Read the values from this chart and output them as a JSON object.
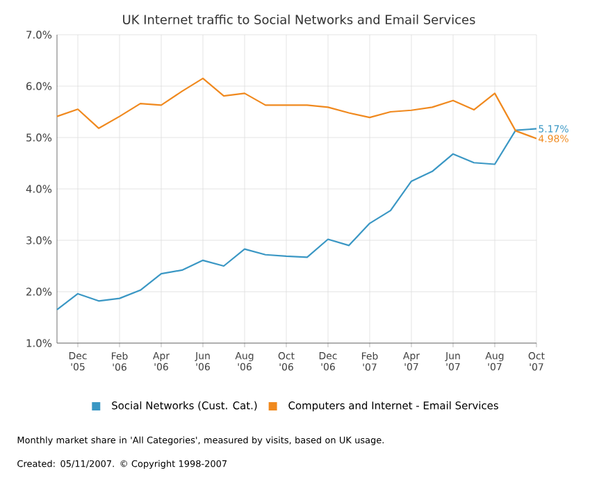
{
  "chart_data": {
    "type": "line",
    "title": "UK Internet traffic to Social Networks and Email Services",
    "categories": [
      null,
      "Dec '05",
      null,
      "Feb '06",
      null,
      "Apr '06",
      null,
      "Jun '06",
      null,
      "Aug '06",
      null,
      "Oct '06",
      null,
      "Dec '06",
      null,
      "Feb '07",
      null,
      "Apr '07",
      null,
      "Jun '07",
      null,
      "Aug '07",
      null,
      "Oct '07"
    ],
    "series": [
      {
        "name": "Social Networks (Cust. Cat.)",
        "color": "#3a97c4",
        "values": [
          1.65,
          1.96,
          1.82,
          1.87,
          2.03,
          2.35,
          2.42,
          2.61,
          2.5,
          2.83,
          2.72,
          2.69,
          2.67,
          3.02,
          2.9,
          3.33,
          3.58,
          4.15,
          4.34,
          4.68,
          4.51,
          4.48,
          5.14,
          5.17
        ]
      },
      {
        "name": "Computers and Internet - Email Services",
        "color": "#f0891e",
        "values": [
          5.41,
          5.55,
          5.18,
          5.41,
          5.66,
          5.63,
          5.9,
          6.15,
          5.81,
          5.86,
          5.63,
          5.63,
          5.63,
          5.59,
          5.48,
          5.39,
          5.5,
          5.53,
          5.59,
          5.72,
          5.54,
          5.86,
          5.13,
          4.98
        ]
      }
    ],
    "ylim": [
      1,
      7
    ],
    "yticks": [
      {
        "value": 1,
        "label": "1.0%"
      },
      {
        "value": 2,
        "label": "2.0%"
      },
      {
        "value": 3,
        "label": "3.0%"
      },
      {
        "value": 4,
        "label": "4.0%"
      },
      {
        "value": 5,
        "label": "5.0%"
      },
      {
        "value": 6,
        "label": "6.0%"
      },
      {
        "value": 7,
        "label": "7.0%"
      }
    ],
    "grid": true,
    "legend": "bottom",
    "marker": "none",
    "line_style": "solid",
    "annotations": [
      {
        "text": "5.17%",
        "x": "Oct '07",
        "y": 5.17
      },
      {
        "text": "4.98%",
        "x": "Oct '07",
        "y": 4.98
      },
      "Monthly market share in 'All Categories', measured by visits, based on UK usage.",
      "Created: 05/11/2007. © Copyright 1998-2007"
    ]
  }
}
